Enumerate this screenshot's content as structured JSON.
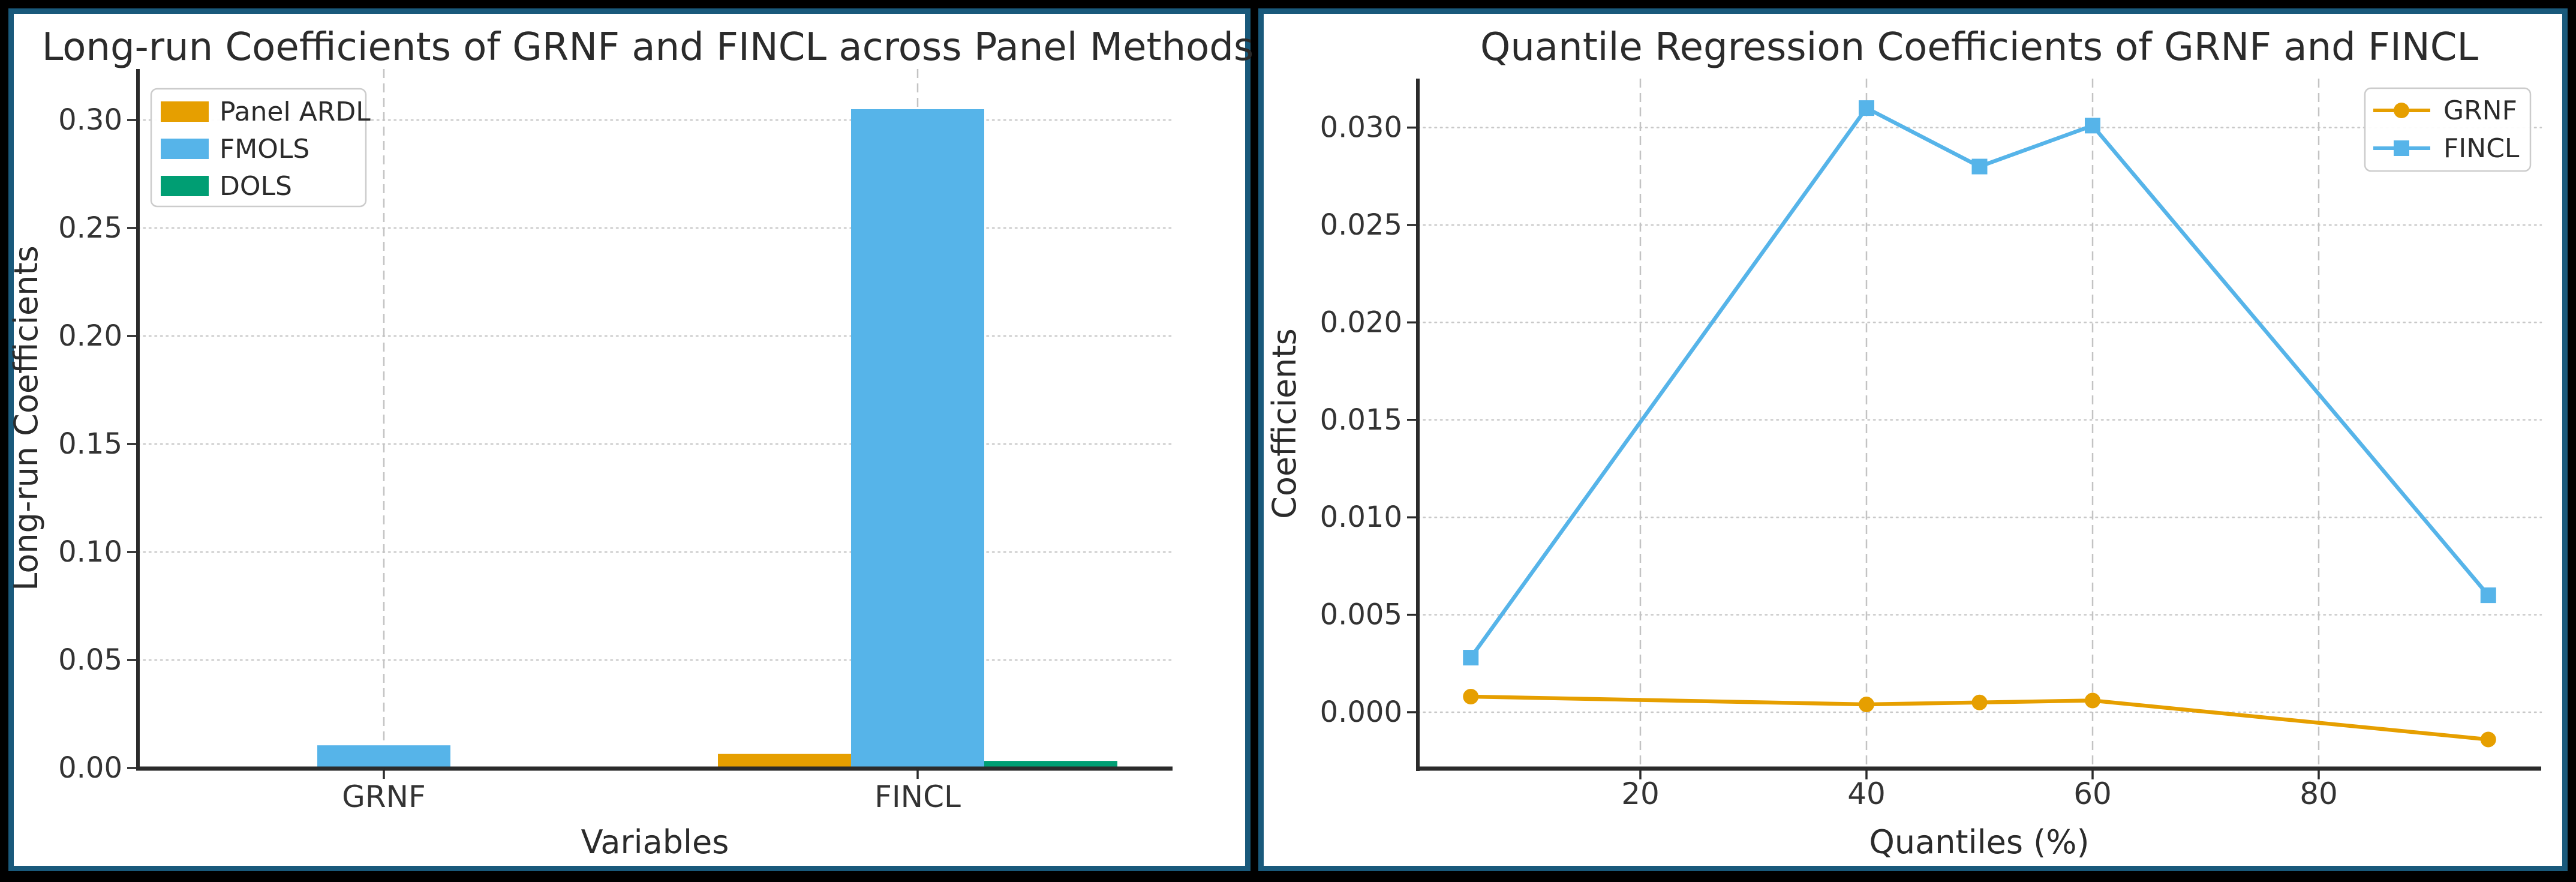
{
  "figure": {
    "background_color": "#000000",
    "panel_border_color": "#19597b",
    "panel_background": "#ffffff",
    "grid_color": "#c9c9c9",
    "spine_color": "#2b2b2b",
    "text_color": "#2b2b2b"
  },
  "chart_data": [
    {
      "type": "bar",
      "title": "Long-run Coefficients of GRNF and FINCL across Panel Methods",
      "xlabel": "Variables",
      "ylabel": "Long-run Coefficients",
      "categories": [
        "GRNF",
        "FINCL"
      ],
      "series": [
        {
          "name": "Panel ARDL",
          "color": "#E69F00",
          "values": [
            0.0005,
            0.0065
          ]
        },
        {
          "name": "FMOLS",
          "color": "#56B4E9",
          "values": [
            0.0105,
            0.305
          ]
        },
        {
          "name": "DOLS",
          "color": "#009E73",
          "values": [
            0.0003,
            0.0033
          ]
        }
      ],
      "yticks": [
        0.0,
        0.05,
        0.1,
        0.15,
        0.2,
        0.25,
        0.3
      ],
      "ytick_labels": [
        "0.00",
        "0.05",
        "0.10",
        "0.15",
        "0.20",
        "0.25",
        "0.30"
      ],
      "ylim": [
        0,
        0.3236
      ],
      "grid": "horizontal dotted at y ticks, vertical dashed at category centers",
      "legend_position": "upper left"
    },
    {
      "type": "line",
      "title": "Quantile Regression Coefficients of GRNF and FINCL",
      "xlabel": "Quantiles (%)",
      "ylabel": "Coefficients",
      "x": [
        5,
        40,
        50,
        60,
        95
      ],
      "series": [
        {
          "name": "GRNF",
          "color": "#E69F00",
          "marker": "circle",
          "values": [
            0.0008,
            0.0004,
            0.0005,
            0.0006,
            -0.0014
          ]
        },
        {
          "name": "FINCL",
          "color": "#56B4E9",
          "marker": "square",
          "values": [
            0.0028,
            0.031,
            0.028,
            0.0301,
            0.006
          ]
        }
      ],
      "xticks": [
        20,
        40,
        60,
        80
      ],
      "xtick_labels": [
        "20",
        "40",
        "60",
        "80"
      ],
      "yticks": [
        0.0,
        0.005,
        0.01,
        0.015,
        0.02,
        0.025,
        0.03
      ],
      "ytick_labels": [
        "0.000",
        "0.005",
        "0.010",
        "0.015",
        "0.020",
        "0.025",
        "0.030"
      ],
      "xlim": [
        0.3,
        99.7
      ],
      "ylim": [
        -0.0029,
        0.0325
      ],
      "grid": "horizontal dotted at y ticks, vertical dashed at x ticks",
      "legend_position": "upper right"
    }
  ]
}
